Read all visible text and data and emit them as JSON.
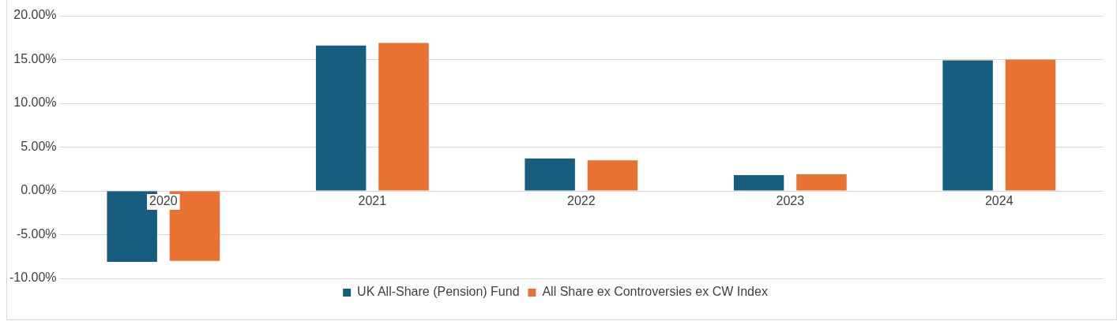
{
  "chart_data": {
    "type": "bar",
    "categories": [
      "2020",
      "2021",
      "2022",
      "2023",
      "2024"
    ],
    "series": [
      {
        "name": "UK All-Share (Pension) Fund",
        "color": "#175e7e",
        "values": [
          -8.1,
          16.6,
          3.7,
          1.8,
          14.9
        ]
      },
      {
        "name": "All Share ex Controversies ex CW Index",
        "color": "#e97132",
        "values": [
          -8.0,
          16.9,
          3.5,
          1.9,
          15.0
        ]
      }
    ],
    "ylim": [
      -10,
      20
    ],
    "yticks": [
      {
        "value": -10,
        "label": "-10.00%"
      },
      {
        "value": -5,
        "label": "-5.00%"
      },
      {
        "value": 0,
        "label": "0.00%"
      },
      {
        "value": 5,
        "label": "5.00%"
      },
      {
        "value": 10,
        "label": "10.00%"
      },
      {
        "value": 15,
        "label": "15.00%"
      },
      {
        "value": 20,
        "label": "20.00%"
      }
    ],
    "grid": "y",
    "legend": "bottom"
  }
}
